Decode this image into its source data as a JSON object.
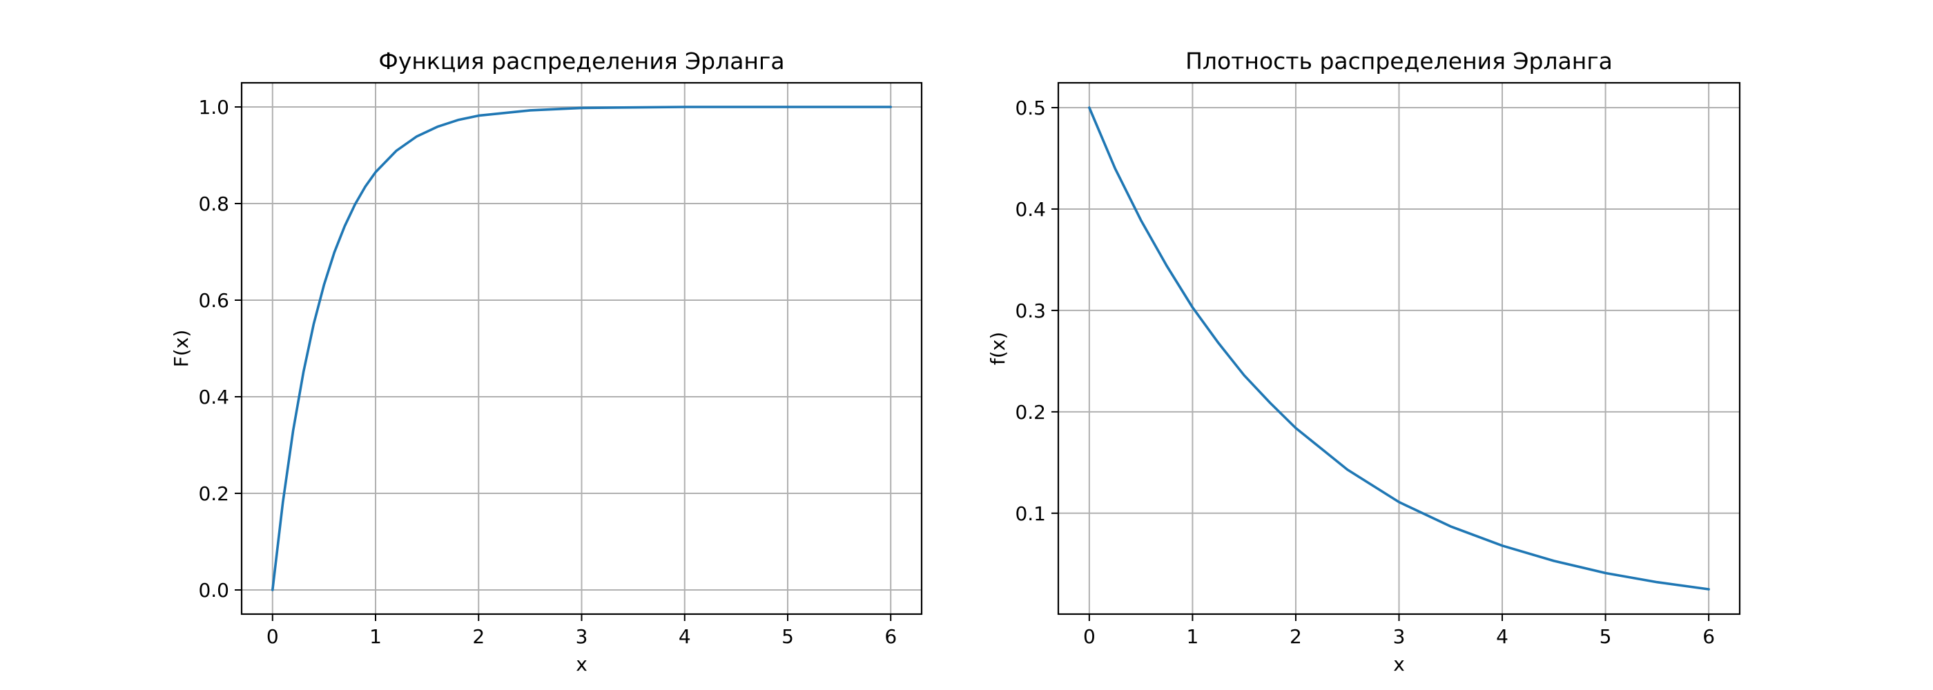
{
  "chart_data": [
    {
      "type": "line",
      "title": "Функция распределения Эрланга",
      "xlabel": "x",
      "ylabel": "F(x)",
      "xlim": [
        -0.3,
        6.3
      ],
      "ylim": [
        -0.05,
        1.05
      ],
      "xticks": [
        "0",
        "1",
        "2",
        "3",
        "4",
        "5",
        "6"
      ],
      "yticks": [
        "0.0",
        "0.2",
        "0.4",
        "0.6",
        "0.8",
        "1.0"
      ],
      "grid": true,
      "series": [
        {
          "color": "#1f77b4",
          "x": [
            0,
            0.1,
            0.2,
            0.3,
            0.4,
            0.5,
            0.6,
            0.7,
            0.8,
            0.9,
            1.0,
            1.2,
            1.4,
            1.6,
            1.8,
            2.0,
            2.5,
            3.0,
            3.5,
            4.0,
            5.0,
            6.0
          ],
          "y": [
            0,
            0.181,
            0.33,
            0.451,
            0.551,
            0.632,
            0.699,
            0.753,
            0.798,
            0.835,
            0.865,
            0.909,
            0.939,
            0.959,
            0.973,
            0.982,
            0.993,
            0.998,
            0.999,
            1.0,
            1.0,
            1.0
          ]
        }
      ]
    },
    {
      "type": "line",
      "title": "Плотность распределения Эрланга",
      "xlabel": "x",
      "ylabel": "f(x)",
      "xlim": [
        -0.3,
        6.3
      ],
      "ylim": [
        0.0005,
        0.5245
      ],
      "xticks": [
        "0",
        "1",
        "2",
        "3",
        "4",
        "5",
        "6"
      ],
      "yticks": [
        "0.1",
        "0.2",
        "0.3",
        "0.4",
        "0.5"
      ],
      "grid": true,
      "series": [
        {
          "color": "#1f77b4",
          "x": [
            0,
            0.25,
            0.5,
            0.75,
            1.0,
            1.25,
            1.5,
            1.75,
            2.0,
            2.5,
            3.0,
            3.5,
            4.0,
            4.5,
            5.0,
            5.5,
            6.0
          ],
          "y": [
            0.5,
            0.44,
            0.389,
            0.344,
            0.303,
            0.268,
            0.236,
            0.209,
            0.184,
            0.143,
            0.111,
            0.087,
            0.068,
            0.053,
            0.041,
            0.032,
            0.025
          ]
        }
      ]
    }
  ]
}
